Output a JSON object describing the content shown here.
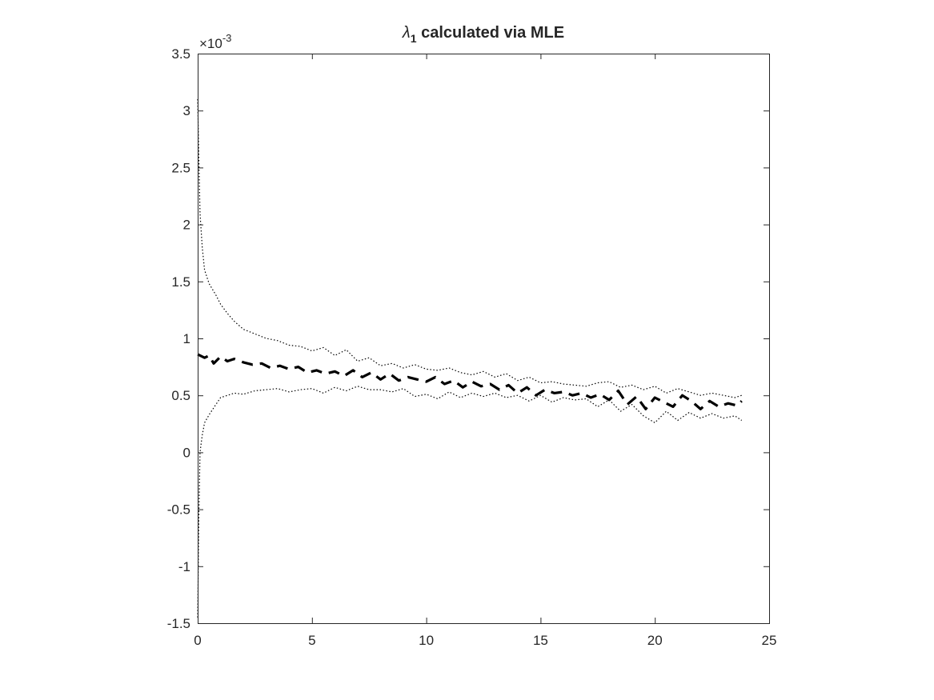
{
  "chart_data": {
    "type": "line",
    "title_symbol": "λ",
    "title_subscript": "1",
    "title_rest": " calculated via MLE",
    "xlabel": "",
    "ylabel": "",
    "xlim": [
      0,
      25
    ],
    "ylim": [
      -1.5,
      3.5
    ],
    "y_exponent_multiplier": "×10",
    "y_exponent_power": "-3",
    "xticks": [
      0,
      5,
      10,
      15,
      20,
      25
    ],
    "xtick_labels": [
      "0",
      "5",
      "10",
      "15",
      "20",
      "25"
    ],
    "yticks": [
      -1.5,
      -1,
      -0.5,
      0,
      0.5,
      1,
      1.5,
      2,
      2.5,
      3,
      3.5
    ],
    "ytick_labels": [
      "-1.5",
      "-1",
      "-0.5",
      "0",
      "0.5",
      "1",
      "1.5",
      "2",
      "2.5",
      "3",
      "3.5"
    ],
    "grid": false,
    "box": true,
    "series": [
      {
        "role": "estimate",
        "style": "dashed",
        "color": "#000000",
        "x": [
          0,
          0.3,
          0.5,
          0.7,
          1.0,
          1.3,
          1.6,
          2.0,
          2.4,
          2.8,
          3.2,
          3.6,
          4.0,
          4.4,
          4.8,
          5.2,
          5.6,
          6.0,
          6.4,
          6.8,
          7.2,
          7.6,
          8.0,
          8.4,
          8.8,
          9.2,
          9.6,
          10.0,
          10.4,
          10.8,
          11.2,
          11.6,
          12.0,
          12.4,
          12.8,
          13.2,
          13.6,
          14.0,
          14.4,
          14.8,
          15.2,
          15.6,
          16.0,
          16.4,
          16.8,
          17.2,
          17.6,
          18.0,
          18.4,
          18.8,
          19.2,
          19.6,
          20.0,
          20.4,
          20.8,
          21.2,
          21.6,
          22.0,
          22.4,
          22.8,
          23.2,
          23.6,
          23.8
        ],
        "y": [
          0.86,
          0.83,
          0.85,
          0.78,
          0.84,
          0.8,
          0.82,
          0.79,
          0.77,
          0.78,
          0.74,
          0.76,
          0.73,
          0.75,
          0.7,
          0.72,
          0.69,
          0.71,
          0.67,
          0.72,
          0.66,
          0.7,
          0.64,
          0.69,
          0.63,
          0.66,
          0.64,
          0.62,
          0.66,
          0.6,
          0.63,
          0.57,
          0.62,
          0.58,
          0.6,
          0.55,
          0.59,
          0.52,
          0.57,
          0.5,
          0.55,
          0.52,
          0.53,
          0.5,
          0.52,
          0.48,
          0.51,
          0.46,
          0.54,
          0.42,
          0.49,
          0.38,
          0.48,
          0.44,
          0.4,
          0.5,
          0.45,
          0.38,
          0.45,
          0.4,
          0.43,
          0.41,
          0.45
        ]
      },
      {
        "role": "upper-bound",
        "style": "dotted",
        "color": "#000000",
        "x": [
          0,
          0.05,
          0.1,
          0.2,
          0.3,
          0.5,
          0.8,
          1.0,
          1.3,
          1.6,
          2.0,
          2.5,
          3.0,
          3.5,
          4.0,
          4.5,
          5.0,
          5.5,
          6.0,
          6.5,
          7.0,
          7.5,
          8.0,
          8.5,
          9.0,
          9.5,
          10.0,
          10.5,
          11.0,
          11.5,
          12.0,
          12.5,
          13.0,
          13.5,
          14.0,
          14.5,
          15.0,
          15.5,
          16.0,
          16.5,
          17.0,
          17.5,
          18.0,
          18.5,
          19.0,
          19.5,
          20.0,
          20.5,
          21.0,
          21.5,
          22.0,
          22.5,
          23.0,
          23.5,
          23.8
        ],
        "y": [
          3.1,
          2.6,
          2.1,
          1.8,
          1.6,
          1.48,
          1.38,
          1.3,
          1.22,
          1.15,
          1.08,
          1.04,
          1.0,
          0.98,
          0.94,
          0.93,
          0.89,
          0.92,
          0.85,
          0.9,
          0.8,
          0.83,
          0.76,
          0.78,
          0.74,
          0.77,
          0.73,
          0.72,
          0.74,
          0.7,
          0.68,
          0.71,
          0.66,
          0.69,
          0.63,
          0.66,
          0.61,
          0.62,
          0.6,
          0.59,
          0.58,
          0.61,
          0.62,
          0.57,
          0.59,
          0.55,
          0.58,
          0.52,
          0.56,
          0.53,
          0.5,
          0.52,
          0.5,
          0.48,
          0.5
        ]
      },
      {
        "role": "lower-bound",
        "style": "dotted",
        "color": "#000000",
        "x": [
          0,
          0.05,
          0.1,
          0.2,
          0.3,
          0.5,
          0.8,
          1.0,
          1.3,
          1.6,
          2.0,
          2.5,
          3.0,
          3.5,
          4.0,
          4.5,
          5.0,
          5.5,
          6.0,
          6.5,
          7.0,
          7.5,
          8.0,
          8.5,
          9.0,
          9.5,
          10.0,
          10.5,
          11.0,
          11.5,
          12.0,
          12.5,
          13.0,
          13.5,
          14.0,
          14.5,
          15.0,
          15.5,
          16.0,
          16.5,
          17.0,
          17.5,
          18.0,
          18.5,
          19.0,
          19.5,
          20.0,
          20.5,
          21.0,
          21.5,
          22.0,
          22.5,
          23.0,
          23.5,
          23.8
        ],
        "y": [
          -1.45,
          -0.6,
          0.0,
          0.15,
          0.26,
          0.33,
          0.42,
          0.48,
          0.5,
          0.52,
          0.51,
          0.54,
          0.55,
          0.56,
          0.53,
          0.55,
          0.56,
          0.52,
          0.57,
          0.54,
          0.58,
          0.55,
          0.55,
          0.53,
          0.56,
          0.49,
          0.51,
          0.47,
          0.53,
          0.48,
          0.52,
          0.49,
          0.52,
          0.48,
          0.5,
          0.45,
          0.5,
          0.44,
          0.48,
          0.46,
          0.47,
          0.4,
          0.46,
          0.36,
          0.42,
          0.32,
          0.26,
          0.36,
          0.28,
          0.35,
          0.3,
          0.34,
          0.3,
          0.32,
          0.28
        ]
      }
    ]
  }
}
